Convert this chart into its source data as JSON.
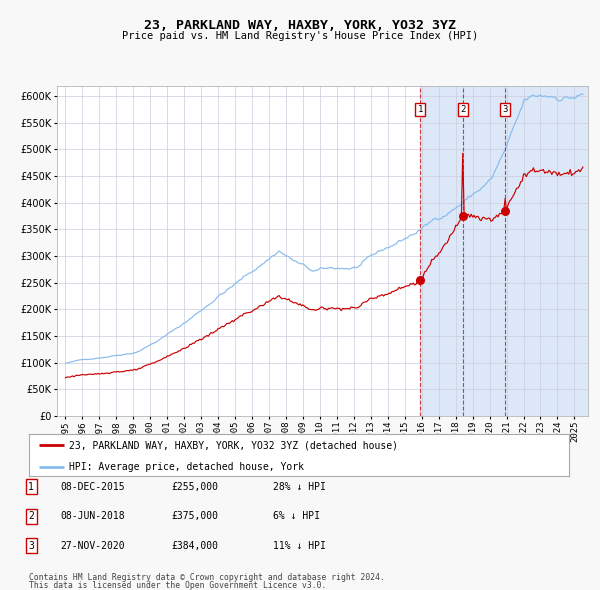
{
  "title": "23, PARKLAND WAY, HAXBY, YORK, YO32 3YZ",
  "subtitle": "Price paid vs. HM Land Registry's House Price Index (HPI)",
  "legend_red": "23, PARKLAND WAY, HAXBY, YORK, YO32 3YZ (detached house)",
  "legend_blue": "HPI: Average price, detached house, York",
  "table_rows": [
    {
      "num": "1",
      "date": "08-DEC-2015",
      "price": "£255,000",
      "pct": "28% ↓ HPI"
    },
    {
      "num": "2",
      "date": "08-JUN-2018",
      "price": "£375,000",
      "pct": "6% ↓ HPI"
    },
    {
      "num": "3",
      "date": "27-NOV-2020",
      "price": "£384,000",
      "pct": "11% ↓ HPI"
    }
  ],
  "footnote1": "Contains HM Land Registry data © Crown copyright and database right 2024.",
  "footnote2": "This data is licensed under the Open Government Licence v3.0.",
  "sale1_x": 2015.92,
  "sale1_y": 255000,
  "sale2_x": 2018.44,
  "sale2_y": 375000,
  "sale3_x": 2020.91,
  "sale3_y": 384000,
  "ylim": [
    0,
    620000
  ],
  "xlim_start": 1994.5,
  "xlim_end": 2025.8,
  "plot_bg": "#ffffff",
  "shade_color": "#dce8f8",
  "line_red": "#cc0000",
  "line_blue": "#88bbee",
  "grid_color": "#ccccdd",
  "fig_bg": "#f8f8f8"
}
